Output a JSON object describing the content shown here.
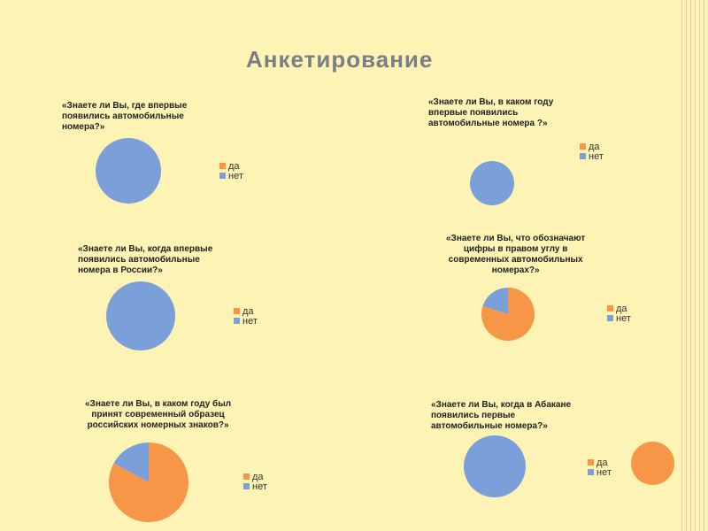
{
  "slide": {
    "title": "Анкетирование",
    "colors": {
      "background": "#fdf3b4",
      "series_da": "#f79646",
      "series_net": "#7b9fd8",
      "title_color": "#7a7f86"
    }
  },
  "chart_data": [
    {
      "type": "pie",
      "title": "«Знаете ли Вы, где впервые появились автомобильные номера?»",
      "title_lines": [
        "«Знаете ли Вы, где впервые",
        "появились автомобильные",
        "номера?»"
      ],
      "categories": [
        "да",
        "нет"
      ],
      "values": [
        0,
        100
      ],
      "legend_placement": "right"
    },
    {
      "type": "pie",
      "title": "«Знаете ли Вы, в каком году впервые появились автомобильные номера ?»",
      "title_lines": [
        "«Знаете ли Вы, в каком году",
        "впервые появились",
        "автомобильные номера ?»"
      ],
      "categories": [
        "да",
        "нет"
      ],
      "values": [
        0,
        100
      ],
      "legend_placement": "right"
    },
    {
      "type": "pie",
      "title": "«Знаете ли Вы, когда впервые появились автомобильные номера в России?»",
      "title_lines": [
        "«Знаете ли Вы, когда впервые",
        "появились автомобильные",
        "номера в России?»"
      ],
      "categories": [
        "да",
        "нет"
      ],
      "values": [
        0,
        100
      ],
      "legend_placement": "right"
    },
    {
      "type": "pie",
      "title": "«Знаете ли Вы, что обозначают цифры в правом углу в современных автомобильных номерах?»",
      "title_lines": [
        "«Знаете ли Вы, что обозначают",
        "цифры в правом углу в",
        "современных автомобильных",
        "номерах?»"
      ],
      "categories": [
        "да",
        "нет"
      ],
      "values": [
        80,
        20
      ],
      "legend_placement": "right"
    },
    {
      "type": "pie",
      "title": "«Знаете ли Вы, в каком году был принят современный образец российских номерных знаков?»",
      "title_lines": [
        "«Знаете ли Вы, в каком году был",
        "принят современный образец",
        "российских номерных знаков?»"
      ],
      "categories": [
        "да",
        "нет"
      ],
      "values": [
        83,
        17
      ],
      "legend_placement": "right"
    },
    {
      "type": "pie",
      "title": "«Знаете ли Вы, когда в Абакане появились первые автомобильные номера?»",
      "title_lines": [
        "«Знаете ли Вы, когда в Абакане",
        "появились первые",
        "автомобильные номера?»"
      ],
      "categories": [
        "да",
        "нет"
      ],
      "values": [
        0,
        100
      ],
      "legend_placement": "right"
    }
  ]
}
